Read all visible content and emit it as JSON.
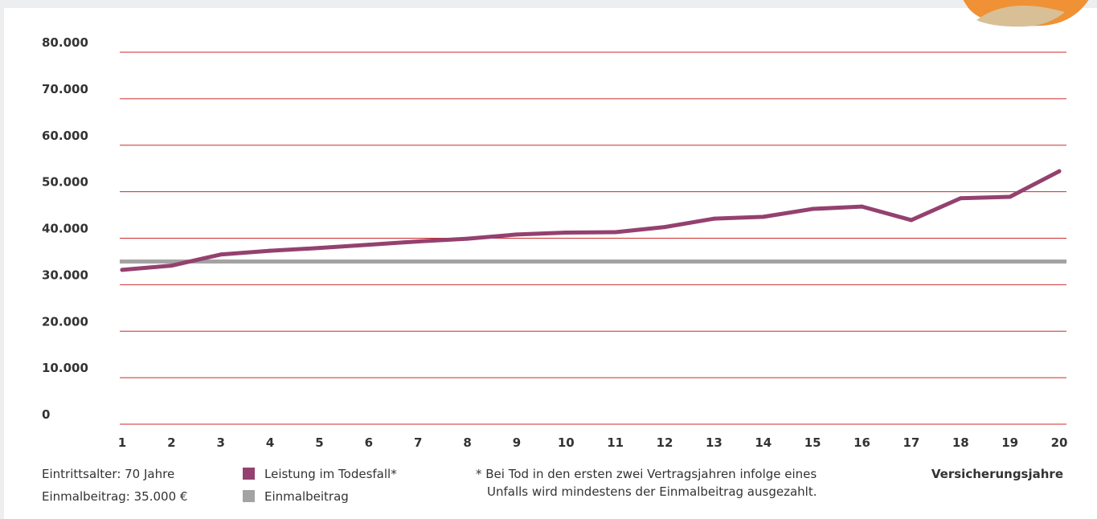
{
  "colors": {
    "grid": "#cc2b2b",
    "series_main": "#94416f",
    "series_ref": "#a3a3a3",
    "axis_text": "#333333",
    "badge_outer": "#ef9134",
    "badge_inner": "#d8bf95"
  },
  "chart_data": {
    "type": "line",
    "title": "",
    "xlabel": "Versicherungsjahre",
    "ylabel": "",
    "x": [
      1,
      2,
      3,
      4,
      5,
      6,
      7,
      8,
      9,
      10,
      11,
      12,
      13,
      14,
      15,
      16,
      17,
      18,
      19,
      20
    ],
    "ylim": [
      0,
      80000
    ],
    "yticks": [
      0,
      10000,
      20000,
      30000,
      40000,
      50000,
      60000,
      70000,
      80000
    ],
    "ytick_labels": [
      "0",
      "10.000",
      "20.000",
      "30.000",
      "40.000",
      "50.000",
      "60.000",
      "70.000",
      "80.000"
    ],
    "xtick_labels": [
      "1",
      "2",
      "3",
      "4",
      "5",
      "6",
      "7",
      "8",
      "9",
      "10",
      "11",
      "12",
      "13",
      "14",
      "15",
      "16",
      "17",
      "18",
      "19",
      "20"
    ],
    "grid": true,
    "series": [
      {
        "name": "Leistung im Todesfall*",
        "values": [
          33200,
          34100,
          36500,
          37300,
          37900,
          38600,
          39300,
          39900,
          40800,
          41200,
          41300,
          42400,
          44200,
          44600,
          46300,
          46800,
          43900,
          48600,
          48900,
          54400
        ]
      },
      {
        "name": "Einmalbeitrag",
        "values": [
          35000,
          35000,
          35000,
          35000,
          35000,
          35000,
          35000,
          35000,
          35000,
          35000,
          35000,
          35000,
          35000,
          35000,
          35000,
          35000,
          35000,
          35000,
          35000,
          35000
        ]
      }
    ]
  },
  "info": {
    "entry_age": "Eintrittsalter: 70 Jahre",
    "premium": "Einmalbeitrag: 35.000 €"
  },
  "legend": {
    "death_benefit": "Leistung im Todesfall*",
    "single_premium": "Einmalbeitrag"
  },
  "footnote": {
    "line1": "* Bei Tod in den ersten zwei Vertragsjahren infolge eines",
    "line2": "Unfalls wird mindestens der Einmalbeitrag ausgezahlt."
  }
}
